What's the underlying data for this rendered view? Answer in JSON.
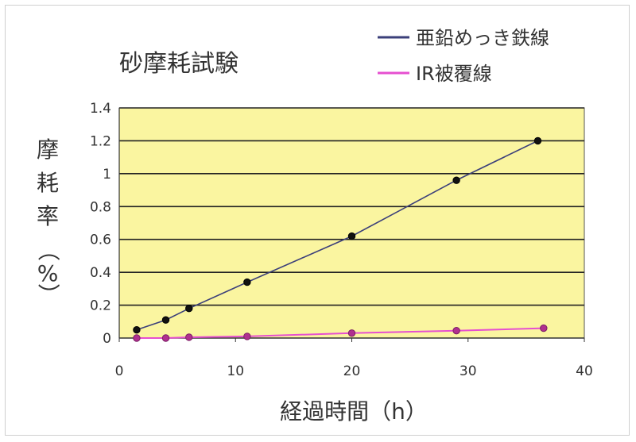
{
  "chart_data": {
    "type": "line",
    "title": "砂摩耗試験",
    "ylabel_chars": [
      "摩",
      "耗",
      "率",
      "（",
      "%",
      "）"
    ],
    "xlabel": "経過時間（h）",
    "xlim": [
      0,
      40
    ],
    "ylim": [
      0,
      1.4
    ],
    "x_ticks": [
      "0",
      "10",
      "20",
      "30",
      "40"
    ],
    "y_ticks": [
      "0",
      "0.2",
      "0.4",
      "0.6",
      "0.8",
      "1",
      "1.2",
      "1.4"
    ],
    "grid": true,
    "plot_background": "#faf5a0",
    "legend_position": "top-right",
    "series": [
      {
        "name": "亜鉛めっき鉄線",
        "color": "#3b3f7a",
        "x": [
          1.5,
          4,
          6,
          11,
          20,
          29,
          36
        ],
        "y": [
          0.05,
          0.11,
          0.18,
          0.34,
          0.62,
          0.96,
          1.2
        ]
      },
      {
        "name": "IR被覆線",
        "color": "#e64fd0",
        "x": [
          1.5,
          4,
          6,
          11,
          20,
          29,
          36.5
        ],
        "y": [
          0.0,
          0.0,
          0.005,
          0.01,
          0.03,
          0.045,
          0.06
        ]
      }
    ]
  }
}
